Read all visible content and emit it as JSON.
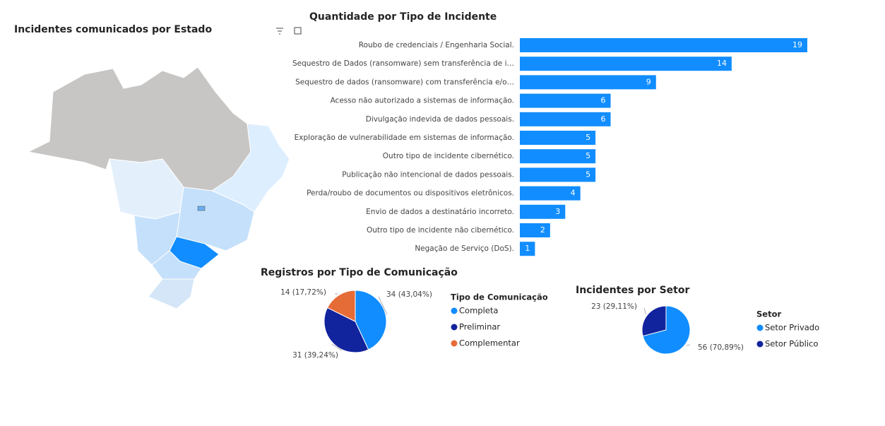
{
  "chart_data": [
    {
      "type": "map",
      "title": "Incidentes comunicados por Estado"
    },
    {
      "type": "bar",
      "title": "Quantidade por Tipo de Incidente",
      "orientation": "horizontal",
      "color": "#118DFF",
      "categories": [
        "Roubo de credenciais / Engenharia Social.",
        "Sequestro de Dados (ransomware) sem transferência de i…",
        "Sequestro de dados (ransomware) com transferência e/o…",
        "Acesso não autorizado a sistemas de informação.",
        "Divulgação indevida de dados pessoais.",
        "Exploração de vulnerabilidade em sistemas de informação.",
        "Outro tipo de incidente cibernético.",
        "Publicação não intencional de dados pessoais.",
        "Perda/roubo de documentos ou dispositivos eletrônicos.",
        "Envio de dados a destinatário incorreto.",
        "Outro tipo de incidente não cibernético.",
        "Negação de Serviço (DoS)."
      ],
      "values": [
        19,
        14,
        9,
        6,
        6,
        5,
        5,
        5,
        4,
        3,
        2,
        1
      ]
    },
    {
      "type": "pie",
      "title": "Registros por Tipo de Comunicação",
      "legend_title": "Tipo de Comunicação",
      "categories": [
        "Completa",
        "Preliminar",
        "Complementar"
      ],
      "values": [
        34,
        31,
        14
      ],
      "value_labels": [
        "34 (43,04%)",
        "31 (39,24%)",
        "14 (17,72%)"
      ],
      "colors": [
        "#118DFF",
        "#12239E",
        "#E66C37"
      ]
    },
    {
      "type": "pie",
      "title": "Incidentes por Setor",
      "legend_title": "Setor",
      "categories": [
        "Setor Privado",
        "Setor Público"
      ],
      "values": [
        56,
        23
      ],
      "value_labels": [
        "56 (70,89%)",
        "23 (29,11%)"
      ],
      "colors": [
        "#118DFF",
        "#12239E"
      ]
    }
  ]
}
